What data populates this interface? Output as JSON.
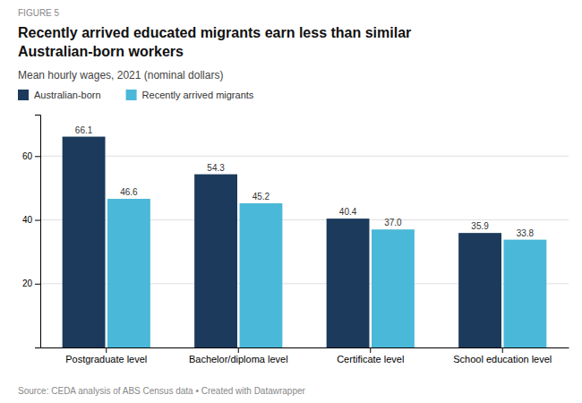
{
  "chart_data": {
    "type": "bar",
    "title": [
      "Recently arrived educated migrants earn less than similar",
      "Australian-born workers"
    ],
    "subtitle": "Mean hourly wages, 2021 (nominal dollars)",
    "annotations": [
      "FIGURE 5",
      "Source: CEDA analysis of ABS Census data • Created with Datawrapper"
    ],
    "categories": [
      "Postgraduate level",
      "Bachelor/diploma level",
      "Certificate level",
      "School education level"
    ],
    "series": [
      {
        "name": "Australian-born",
        "values": [
          66.1,
          54.3,
          40.4,
          35.9
        ],
        "color": "#1b3a5c"
      },
      {
        "name": "Recently arrived migrants",
        "values": [
          46.6,
          45.2,
          37.0,
          33.8
        ],
        "value_labels": [
          "46.6",
          "45.2",
          "37.0",
          "33.8"
        ],
        "color": "#4ab8d8"
      }
    ],
    "ylim": [
      0,
      73
    ],
    "yticks": [
      20,
      40,
      60
    ],
    "grid": true,
    "legend": "top-left",
    "data_labels": true
  }
}
